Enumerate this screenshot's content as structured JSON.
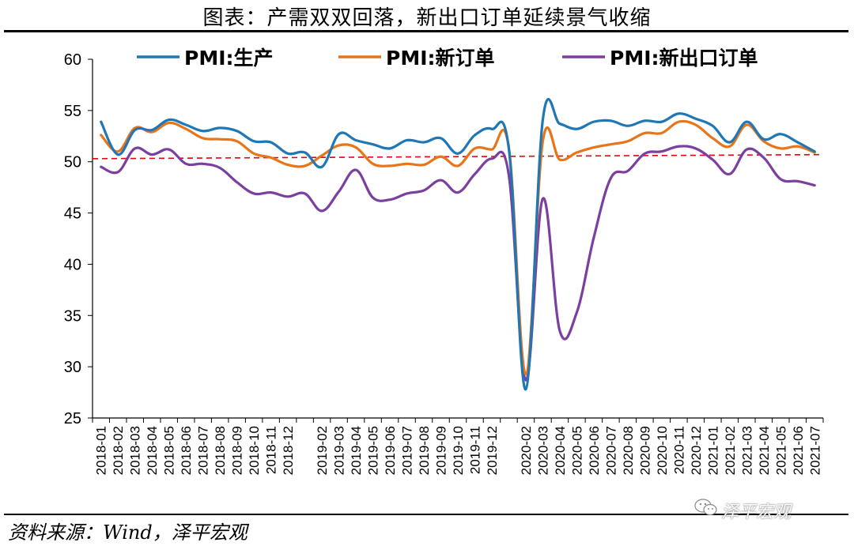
{
  "title": "图表：产需双双回落，新出口订单延续景气收缩",
  "source": "资料来源：Wind，泽平宏观",
  "watermark": "泽平宏观",
  "colors": {
    "production": "#1f77b4",
    "new_orders": "#e8751a",
    "new_export_orders": "#7b3fa0",
    "reference": "#e8000b"
  },
  "chart_data": {
    "type": "line",
    "x": [
      "2018-01",
      "2018-02",
      "2018-03",
      "2018-04",
      "2018-05",
      "2018-06",
      "2018-07",
      "2018-08",
      "2018-09",
      "2018-10",
      "2018-11",
      "2018-12",
      "2019-01",
      "2019-02",
      "2019-03",
      "2019-04",
      "2019-05",
      "2019-06",
      "2019-07",
      "2019-08",
      "2019-09",
      "2019-10",
      "2019-11",
      "2019-12",
      "2020-01",
      "2020-02",
      "2020-03",
      "2020-04",
      "2020-05",
      "2020-06",
      "2020-07",
      "2020-08",
      "2020-09",
      "2020-10",
      "2020-11",
      "2020-12",
      "2021-01",
      "2021-02",
      "2021-03",
      "2021-04",
      "2021-05",
      "2021-06",
      "2021-07"
    ],
    "x_tick_labels": [
      "2018-01",
      "2018-02",
      "2018-03",
      "2018-04",
      "2018-05",
      "2018-06",
      "2018-07",
      "2018-08",
      "2018-09",
      "2018-10",
      "2018-11",
      "2018-12",
      "2019-02",
      "2019-03",
      "2019-04",
      "2019-05",
      "2019-06",
      "2019-07",
      "2019-08",
      "2019-09",
      "2019-10",
      "2019-11",
      "2019-12",
      "2020-02",
      "2020-03",
      "2020-04",
      "2020-05",
      "2020-06",
      "2020-07",
      "2020-08",
      "2020-09",
      "2020-10",
      "2020-11",
      "2020-12",
      "2021-01",
      "2021-02",
      "2021-03",
      "2021-04",
      "2021-05",
      "2021-06",
      "2021-07"
    ],
    "series": [
      {
        "name": "PMI:生产",
        "color_key": "production",
        "values": [
          53.9,
          50.7,
          53.1,
          53.1,
          54.1,
          53.6,
          53.0,
          53.3,
          53.0,
          52.0,
          51.9,
          50.8,
          50.9,
          49.5,
          52.7,
          52.1,
          51.7,
          51.3,
          52.1,
          51.9,
          52.3,
          50.8,
          52.6,
          53.2,
          51.3,
          27.8,
          54.1,
          53.7,
          53.2,
          53.9,
          54.0,
          53.5,
          54.0,
          53.9,
          54.7,
          54.2,
          53.5,
          51.9,
          53.9,
          52.2,
          52.7,
          51.9,
          51.0
        ]
      },
      {
        "name": "PMI:新订单",
        "color_key": "new_orders",
        "values": [
          52.6,
          51.0,
          53.3,
          52.9,
          53.8,
          53.2,
          52.3,
          52.2,
          52.0,
          50.8,
          50.4,
          49.7,
          49.6,
          50.6,
          51.6,
          51.4,
          49.8,
          49.6,
          49.8,
          49.7,
          50.5,
          49.6,
          51.3,
          51.2,
          51.4,
          29.3,
          52.0,
          50.2,
          50.9,
          51.4,
          51.7,
          52.0,
          52.8,
          52.8,
          53.9,
          53.6,
          52.3,
          51.5,
          53.6,
          52.0,
          51.3,
          51.5,
          50.9
        ]
      },
      {
        "name": "PMI:新出口订单",
        "color_key": "new_export_orders",
        "values": [
          49.5,
          49.0,
          51.3,
          50.7,
          51.2,
          49.8,
          49.8,
          49.4,
          48.0,
          46.9,
          47.0,
          46.6,
          46.9,
          45.2,
          47.1,
          49.2,
          46.5,
          46.3,
          46.9,
          47.2,
          48.2,
          47.0,
          48.8,
          50.3,
          48.7,
          28.7,
          46.4,
          33.5,
          35.3,
          42.6,
          48.4,
          49.1,
          50.8,
          51.0,
          51.5,
          51.3,
          50.2,
          48.8,
          51.2,
          50.4,
          48.3,
          48.1,
          47.7
        ]
      }
    ],
    "reference_line": {
      "label": "",
      "start": 50.3,
      "end": 50.7
    },
    "ylim": [
      25,
      60
    ],
    "yticks": [
      25,
      30,
      35,
      40,
      45,
      50,
      55,
      60
    ],
    "legend": "top-center",
    "grid": false
  }
}
